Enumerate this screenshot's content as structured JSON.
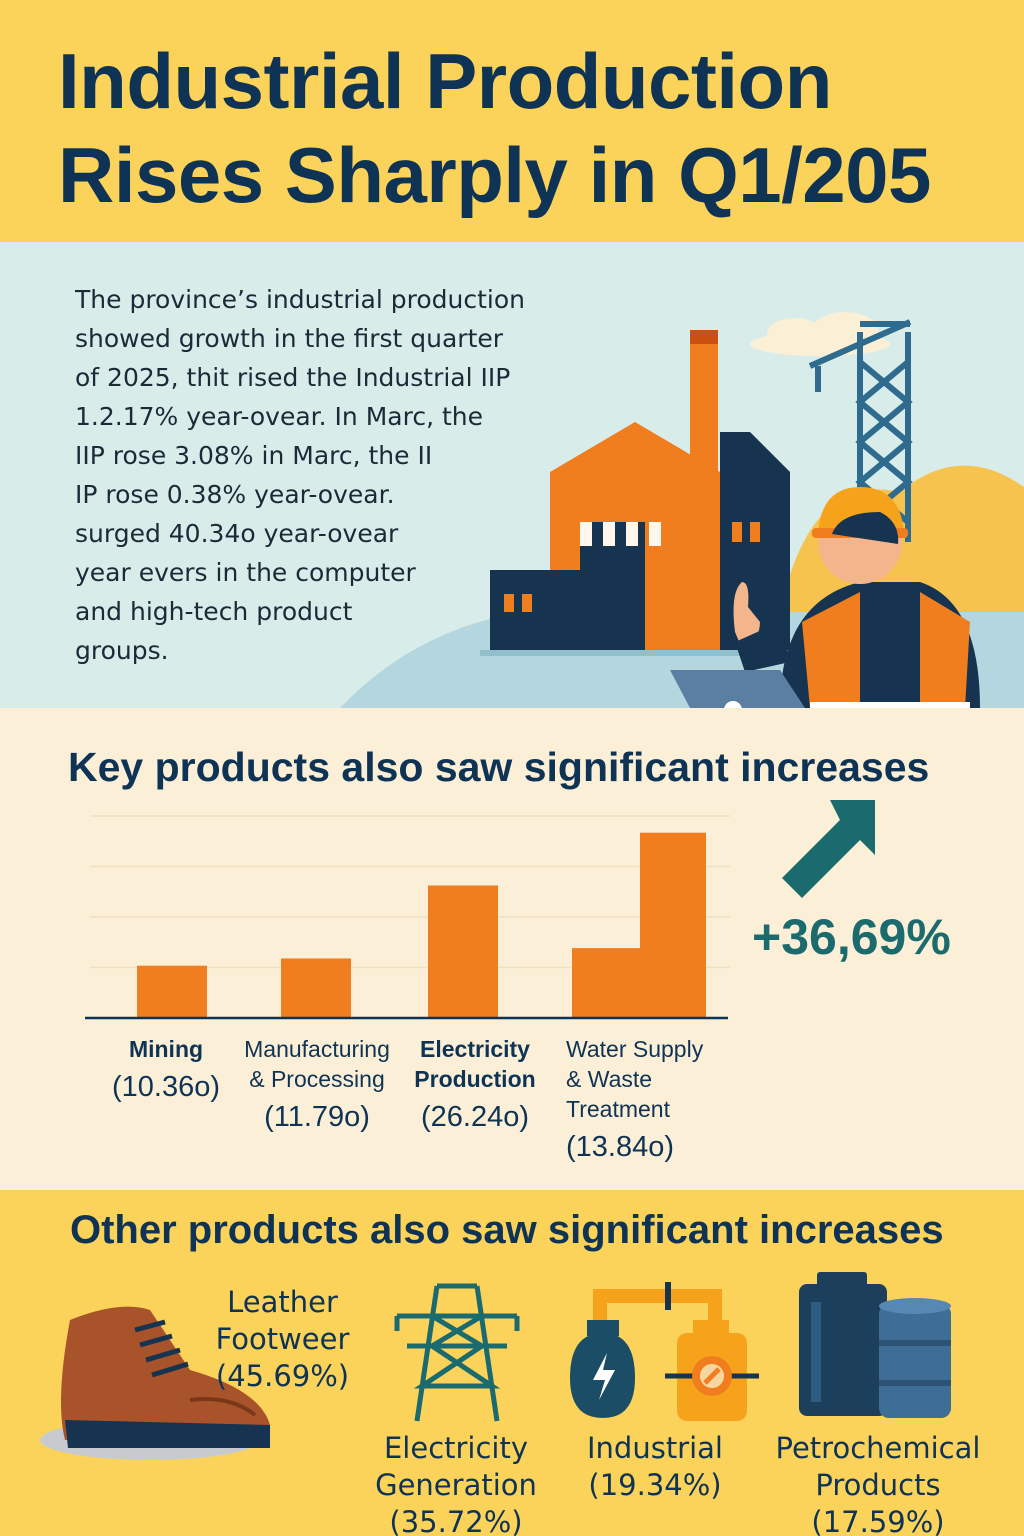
{
  "title": {
    "line1": "Industrial Production",
    "line2": "Rises Sharply in Q1/205"
  },
  "intro": {
    "lines": [
      "The province’s industrial production",
      "showed growth in the first quarter",
      "of 2025, thit rised the Industrial IIP",
      "1.2.17% year-ovear. In Marc, the",
      "IIP rose 3.08% in Marc, the II",
      "IP rose 0.38% year-ovear.",
      "surged 40.34o year-ovear",
      "year evers in the computer",
      "and high-tech product",
      "groups."
    ]
  },
  "key_section": {
    "heading": "Key products also saw significant increases",
    "headline_value": "+36,69%",
    "labels": [
      {
        "name_lines": [
          "Mining"
        ],
        "value": "(10.36o)",
        "bold": true
      },
      {
        "name_lines": [
          "Manufacturing",
          "& Processing"
        ],
        "value": "(11.79o)",
        "bold": false
      },
      {
        "name_lines": [
          "Electricity",
          "Production"
        ],
        "value": "(26.24o)",
        "bold": true
      },
      {
        "name_lines": [
          "Water Supply",
          "& Waste",
          "Treatment"
        ],
        "value": "(13.84o)",
        "bold": false
      }
    ]
  },
  "chart_data": {
    "type": "bar",
    "title": "Key products also saw significant increases",
    "categories": [
      "Mining",
      "Manufacturing & Processing",
      "Electricity Production",
      "Water Supply & Waste Treatment"
    ],
    "values": [
      10.36,
      11.79,
      26.24,
      13.84
    ],
    "extra_bar_value": 36.69,
    "bar_color": "#f07d1e",
    "axis_color": "#0f3354",
    "grid": true,
    "ylim": [
      0,
      40
    ]
  },
  "other_section": {
    "heading": "Other products also saw significant increases",
    "items": [
      {
        "name_lines": [
          "Leather",
          "Footweer"
        ],
        "value": "(45.69%)",
        "icon": "shoe-icon"
      },
      {
        "name_lines": [
          "Electricity",
          "Generation"
        ],
        "value": "(35.72%)",
        "icon": "power-tower-icon"
      },
      {
        "name_lines": [
          "Industrial"
        ],
        "value": "(19.34%)",
        "icon": "industrial-tanks-icon"
      },
      {
        "name_lines": [
          "Petrochemical",
          "Products"
        ],
        "value": "(17.59%)",
        "icon": "barrels-icon"
      }
    ]
  },
  "colors": {
    "yellow": "#fbd35a",
    "navy": "#0f3354",
    "teal": "#1b6a6e",
    "orange": "#f07d1e",
    "cream": "#fbf0d7",
    "light_blue": "#d8ecea"
  }
}
